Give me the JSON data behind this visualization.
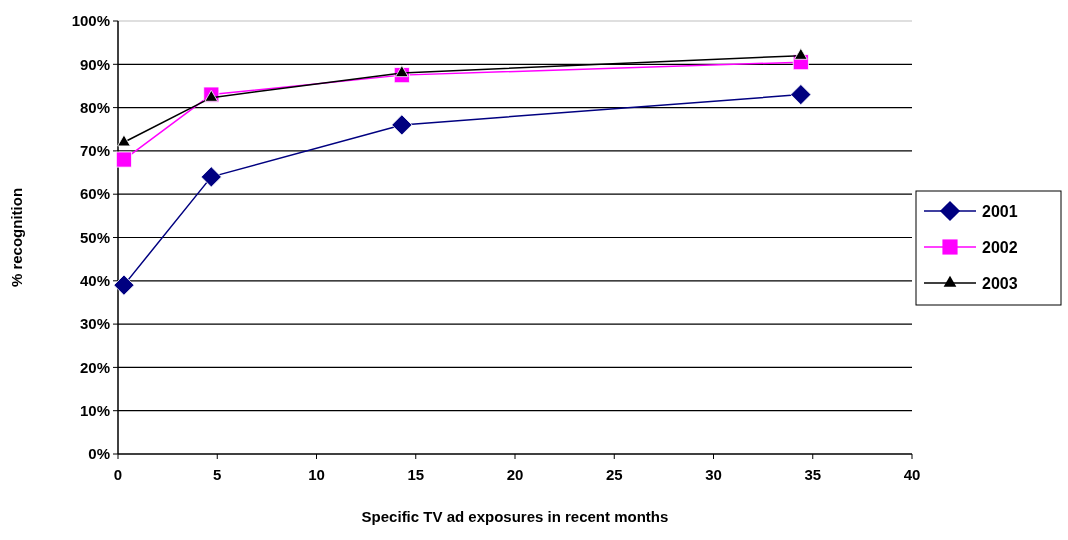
{
  "chart_data": {
    "type": "line",
    "xlabel": "Specific TV ad exposures in recent months",
    "ylabel": "% recognition",
    "x": [
      0.3,
      4.7,
      14.3,
      34.4
    ],
    "series": [
      {
        "name": "2001",
        "color": "#000080",
        "values": [
          39,
          64,
          76,
          83
        ],
        "marker": "diamond"
      },
      {
        "name": "2002",
        "color": "#ff00ff",
        "values": [
          68,
          83,
          87.5,
          90.5
        ],
        "marker": "square"
      },
      {
        "name": "2003",
        "color": "#000000",
        "values": [
          72,
          82.3,
          88,
          92
        ],
        "marker": "triangle"
      }
    ],
    "xlim": [
      0,
      40
    ],
    "xticks": [
      0,
      5,
      10,
      15,
      20,
      25,
      30,
      35,
      40
    ],
    "ylim": [
      0,
      100
    ],
    "yticks": [
      {
        "value": 0,
        "label": "0%"
      },
      {
        "value": 10,
        "label": "10%"
      },
      {
        "value": 20,
        "label": "20%"
      },
      {
        "value": 30,
        "label": "30%"
      },
      {
        "value": 40,
        "label": "40%"
      },
      {
        "value": 50,
        "label": "50%"
      },
      {
        "value": 60,
        "label": "60%"
      },
      {
        "value": 70,
        "label": "70%"
      },
      {
        "value": 80,
        "label": "80%"
      },
      {
        "value": 90,
        "label": "90%"
      },
      {
        "value": 100,
        "label": "100%"
      }
    ],
    "grid": "y",
    "legend": "right"
  }
}
